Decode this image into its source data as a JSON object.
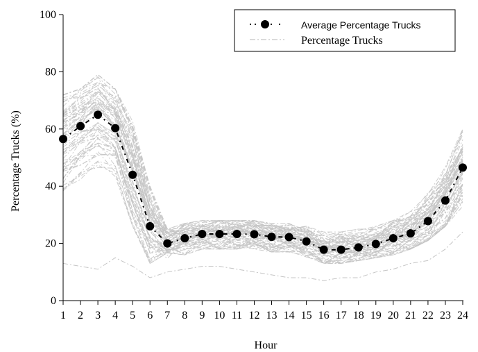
{
  "chart_data": {
    "type": "line",
    "xlabel": "Hour",
    "ylabel": "Percentage Trucks (%)",
    "ylim": [
      0,
      100
    ],
    "xlim": [
      1,
      24
    ],
    "x_ticks": [
      "1",
      "2",
      "3",
      "4",
      "5",
      "6",
      "7",
      "8",
      "9",
      "10",
      "11",
      "12",
      "13",
      "14",
      "15",
      "16",
      "17",
      "18",
      "19",
      "20",
      "21",
      "22",
      "23",
      "24"
    ],
    "y_ticks": [
      "0",
      "20",
      "40",
      "60",
      "80",
      "100"
    ],
    "grid": false,
    "legend_position": "top-right",
    "x": [
      1,
      2,
      3,
      4,
      5,
      6,
      7,
      8,
      9,
      10,
      11,
      12,
      13,
      14,
      15,
      16,
      17,
      18,
      19,
      20,
      21,
      22,
      23,
      24
    ],
    "series": [
      {
        "name": "Average Percentage Trucks",
        "style": "dash-dot with filled circle markers",
        "color": "#000000",
        "values": [
          56.5,
          61,
          65,
          60.3,
          44,
          26,
          20,
          21.8,
          23.3,
          23.3,
          23.3,
          23.2,
          22.3,
          22.2,
          20.7,
          17.8,
          17.8,
          18.6,
          19.8,
          21.8,
          23.5,
          27.8,
          35,
          46.5
        ]
      },
      {
        "name": "Percentage Trucks",
        "style": "light gray dash-dot lines (many individual sites)",
        "color": "#c4c4c4",
        "envelope_low": [
          33,
          38,
          44,
          42,
          26,
          13,
          14,
          16,
          18,
          18,
          18,
          18,
          17,
          17,
          15,
          13,
          13,
          14,
          15,
          16,
          18,
          21,
          26,
          33
        ],
        "envelope_high": [
          72,
          74,
          79,
          74,
          66,
          41,
          25,
          27,
          28,
          28,
          28,
          28,
          27,
          27,
          26,
          24,
          24,
          25,
          26,
          28,
          32,
          40,
          49,
          60
        ],
        "outlier_low": [
          13,
          12,
          11,
          15,
          12,
          8,
          10,
          11,
          12,
          12,
          11,
          10,
          9,
          8,
          8,
          7,
          8,
          8,
          10,
          11,
          13,
          14,
          18,
          24
        ]
      }
    ]
  },
  "legend": {
    "avg_label": "Average Percentage Trucks",
    "sites_label": "Percentage Trucks"
  },
  "colors": {
    "average": "#000000",
    "sites": "#c4c4c4",
    "axis": "#000000"
  }
}
